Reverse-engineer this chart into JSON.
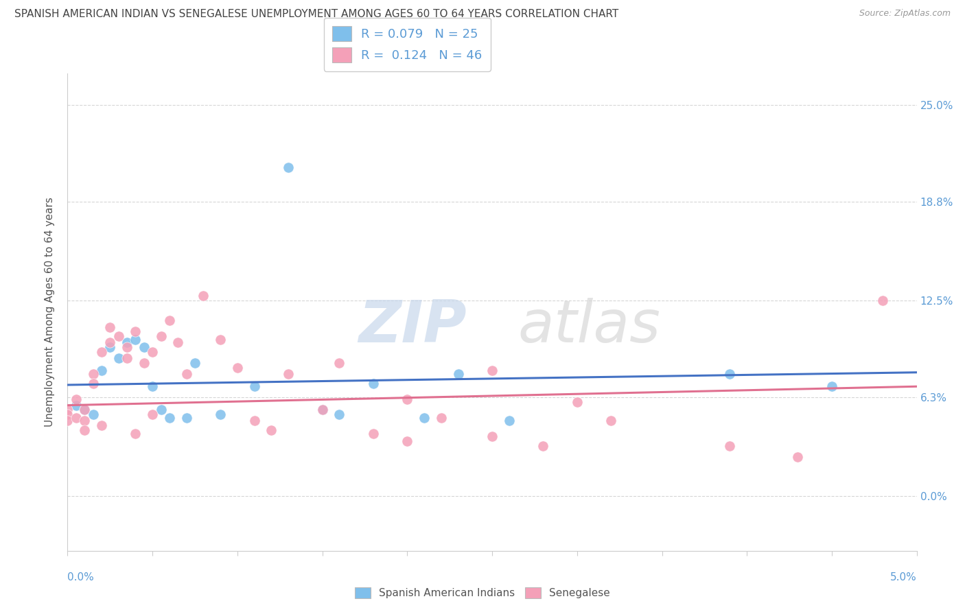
{
  "title": "SPANISH AMERICAN INDIAN VS SENEGALESE UNEMPLOYMENT AMONG AGES 60 TO 64 YEARS CORRELATION CHART",
  "source": "Source: ZipAtlas.com",
  "ylabel": "Unemployment Among Ages 60 to 64 years",
  "ytick_values": [
    0.0,
    6.3,
    12.5,
    18.8,
    25.0
  ],
  "ytick_labels": [
    "0.0%",
    "6.3%",
    "12.5%",
    "18.8%",
    "25.0%"
  ],
  "xmin": 0.0,
  "xmax": 5.0,
  "ymin": -3.5,
  "ymax": 27.0,
  "r_blue": 0.079,
  "n_blue": 25,
  "r_pink": 0.124,
  "n_pink": 46,
  "blue_color": "#7fbfeb",
  "pink_color": "#f4a0b8",
  "blue_line_color": "#4472c4",
  "pink_line_color": "#e07090",
  "blue_scatter": [
    [
      0.05,
      5.8
    ],
    [
      0.1,
      5.5
    ],
    [
      0.15,
      5.2
    ],
    [
      0.2,
      8.0
    ],
    [
      0.25,
      9.5
    ],
    [
      0.3,
      8.8
    ],
    [
      0.35,
      9.8
    ],
    [
      0.4,
      10.0
    ],
    [
      0.45,
      9.5
    ],
    [
      0.5,
      7.0
    ],
    [
      0.55,
      5.5
    ],
    [
      0.6,
      5.0
    ],
    [
      0.7,
      5.0
    ],
    [
      0.75,
      8.5
    ],
    [
      0.9,
      5.2
    ],
    [
      1.1,
      7.0
    ],
    [
      1.3,
      21.0
    ],
    [
      1.5,
      5.5
    ],
    [
      1.6,
      5.2
    ],
    [
      1.8,
      7.2
    ],
    [
      2.1,
      5.0
    ],
    [
      2.3,
      7.8
    ],
    [
      2.6,
      4.8
    ],
    [
      3.9,
      7.8
    ],
    [
      4.5,
      7.0
    ]
  ],
  "pink_scatter": [
    [
      0.0,
      5.5
    ],
    [
      0.0,
      5.2
    ],
    [
      0.0,
      4.8
    ],
    [
      0.05,
      6.2
    ],
    [
      0.05,
      5.0
    ],
    [
      0.1,
      5.5
    ],
    [
      0.1,
      4.8
    ],
    [
      0.1,
      4.2
    ],
    [
      0.15,
      7.8
    ],
    [
      0.15,
      7.2
    ],
    [
      0.2,
      9.2
    ],
    [
      0.2,
      4.5
    ],
    [
      0.25,
      10.8
    ],
    [
      0.25,
      9.8
    ],
    [
      0.3,
      10.2
    ],
    [
      0.35,
      9.5
    ],
    [
      0.35,
      8.8
    ],
    [
      0.4,
      10.5
    ],
    [
      0.4,
      4.0
    ],
    [
      0.45,
      8.5
    ],
    [
      0.5,
      9.2
    ],
    [
      0.5,
      5.2
    ],
    [
      0.55,
      10.2
    ],
    [
      0.6,
      11.2
    ],
    [
      0.65,
      9.8
    ],
    [
      0.7,
      7.8
    ],
    [
      0.8,
      12.8
    ],
    [
      0.9,
      10.0
    ],
    [
      1.0,
      8.2
    ],
    [
      1.1,
      4.8
    ],
    [
      1.2,
      4.2
    ],
    [
      1.3,
      7.8
    ],
    [
      1.5,
      5.5
    ],
    [
      1.6,
      8.5
    ],
    [
      1.8,
      4.0
    ],
    [
      2.0,
      3.5
    ],
    [
      2.0,
      6.2
    ],
    [
      2.2,
      5.0
    ],
    [
      2.5,
      8.0
    ],
    [
      2.5,
      3.8
    ],
    [
      2.8,
      3.2
    ],
    [
      3.0,
      6.0
    ],
    [
      3.2,
      4.8
    ],
    [
      3.9,
      3.2
    ],
    [
      4.3,
      2.5
    ],
    [
      4.8,
      12.5
    ]
  ],
  "blue_trendline": [
    [
      0.0,
      7.1
    ],
    [
      5.0,
      7.9
    ]
  ],
  "pink_trendline": [
    [
      0.0,
      5.8
    ],
    [
      5.0,
      7.0
    ]
  ],
  "watermark_zip": "ZIP",
  "watermark_atlas": "atlas",
  "legend_label_blue": "Spanish American Indians",
  "legend_label_pink": "Senegalese",
  "grid_color": "#cccccc",
  "title_color": "#444444",
  "tick_label_color": "#5b9bd5",
  "ylabel_color": "#555555"
}
